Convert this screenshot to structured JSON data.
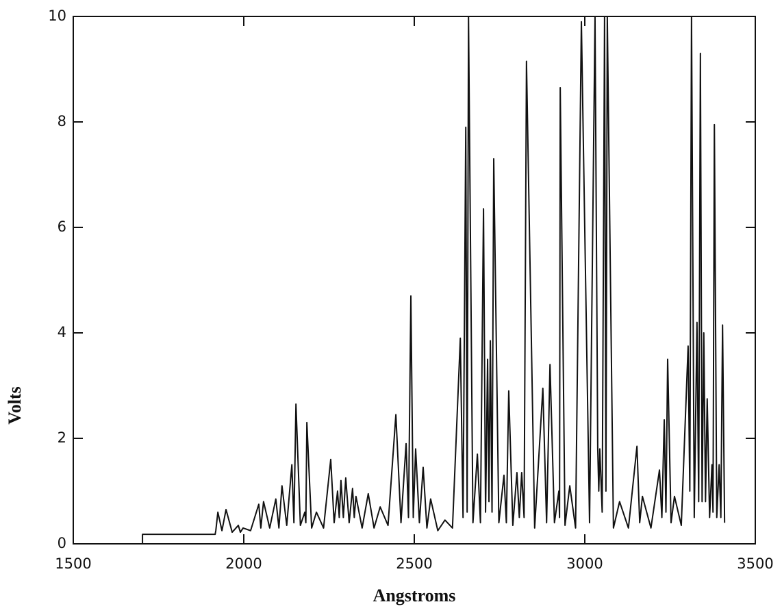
{
  "chart_data": {
    "type": "line",
    "x_label": "Angstroms",
    "y_label": "Volts",
    "xlim": [
      1500,
      3500
    ],
    "xticks": [
      1500,
      2000,
      2500,
      3000,
      3500
    ],
    "ylim": [
      0,
      10
    ],
    "yticks": [
      0,
      2,
      4,
      6,
      8,
      10
    ],
    "color": "#111111",
    "x": [
      1703,
      1703,
      1916,
      1918,
      1924,
      1936,
      1948,
      1966,
      1984,
      1990,
      1998,
      2020,
      2044,
      2050,
      2058,
      2076,
      2094,
      2103,
      2112,
      2126,
      2141,
      2147,
      2153,
      2166,
      2179,
      2182,
      2185,
      2199,
      2213,
      2234,
      2255,
      2265,
      2275,
      2280,
      2285,
      2292,
      2299,
      2309,
      2319,
      2324,
      2329,
      2347,
      2365,
      2382,
      2400,
      2423,
      2446,
      2461,
      2476,
      2483,
      2490,
      2497,
      2504,
      2515,
      2526,
      2537,
      2548,
      2569,
      2590,
      2612,
      2635,
      2643,
      2651,
      2655,
      2659,
      2672,
      2685,
      2694,
      2703,
      2709,
      2715,
      2719,
      2723,
      2728,
      2733,
      2748,
      2763,
      2770,
      2777,
      2789,
      2801,
      2808,
      2815,
      2822,
      2829,
      2853,
      2877,
      2888,
      2898,
      2911,
      2924,
      2926,
      2928,
      2942,
      2956,
      2973,
      2990,
      3014,
      3030,
      3038,
      3041,
      3044,
      3051,
      3058,
      3062,
      3066,
      3084,
      3102,
      3128,
      3153,
      3161,
      3169,
      3194,
      3219,
      3226,
      3233,
      3238,
      3243,
      3253,
      3263,
      3283,
      3303,
      3308,
      3313,
      3321,
      3329,
      3334,
      3339,
      3344,
      3349,
      3354,
      3359,
      3366,
      3373,
      3376,
      3380,
      3387,
      3394,
      3399,
      3404,
      3410
    ],
    "values": [
      0,
      0.18,
      0.18,
      0.25,
      0.6,
      0.25,
      0.65,
      0.22,
      0.35,
      0.22,
      0.3,
      0.25,
      0.75,
      0.3,
      0.8,
      0.3,
      0.85,
      0.3,
      1.1,
      0.35,
      1.5,
      0.4,
      2.65,
      0.35,
      0.6,
      0.4,
      2.3,
      0.3,
      0.6,
      0.3,
      1.6,
      0.4,
      1.0,
      0.5,
      1.2,
      0.5,
      1.25,
      0.4,
      1.05,
      0.5,
      0.9,
      0.3,
      0.95,
      0.3,
      0.7,
      0.35,
      2.45,
      0.4,
      1.9,
      0.5,
      4.7,
      0.5,
      1.8,
      0.4,
      1.45,
      0.3,
      0.85,
      0.25,
      0.45,
      0.3,
      3.9,
      0.5,
      7.9,
      0.6,
      10,
      0.4,
      1.7,
      0.4,
      6.35,
      0.6,
      3.5,
      0.8,
      3.85,
      0.6,
      7.3,
      0.4,
      1.3,
      0.4,
      2.9,
      0.35,
      1.35,
      0.5,
      1.35,
      0.5,
      9.15,
      0.3,
      2.95,
      0.4,
      3.4,
      0.4,
      1.0,
      0.5,
      8.65,
      0.35,
      1.1,
      0.3,
      9.9,
      0.4,
      10,
      1.8,
      1.0,
      1.8,
      0.6,
      10,
      1.0,
      10,
      0.3,
      0.8,
      0.3,
      1.85,
      0.4,
      0.9,
      0.3,
      1.4,
      0.5,
      2.35,
      0.6,
      3.5,
      0.4,
      0.9,
      0.35,
      3.75,
      1.0,
      10,
      0.5,
      4.2,
      0.8,
      9.3,
      0.8,
      4.0,
      0.8,
      2.75,
      0.5,
      1.5,
      0.6,
      7.95,
      0.5,
      1.5,
      0.5,
      4.15,
      0.4
    ]
  }
}
